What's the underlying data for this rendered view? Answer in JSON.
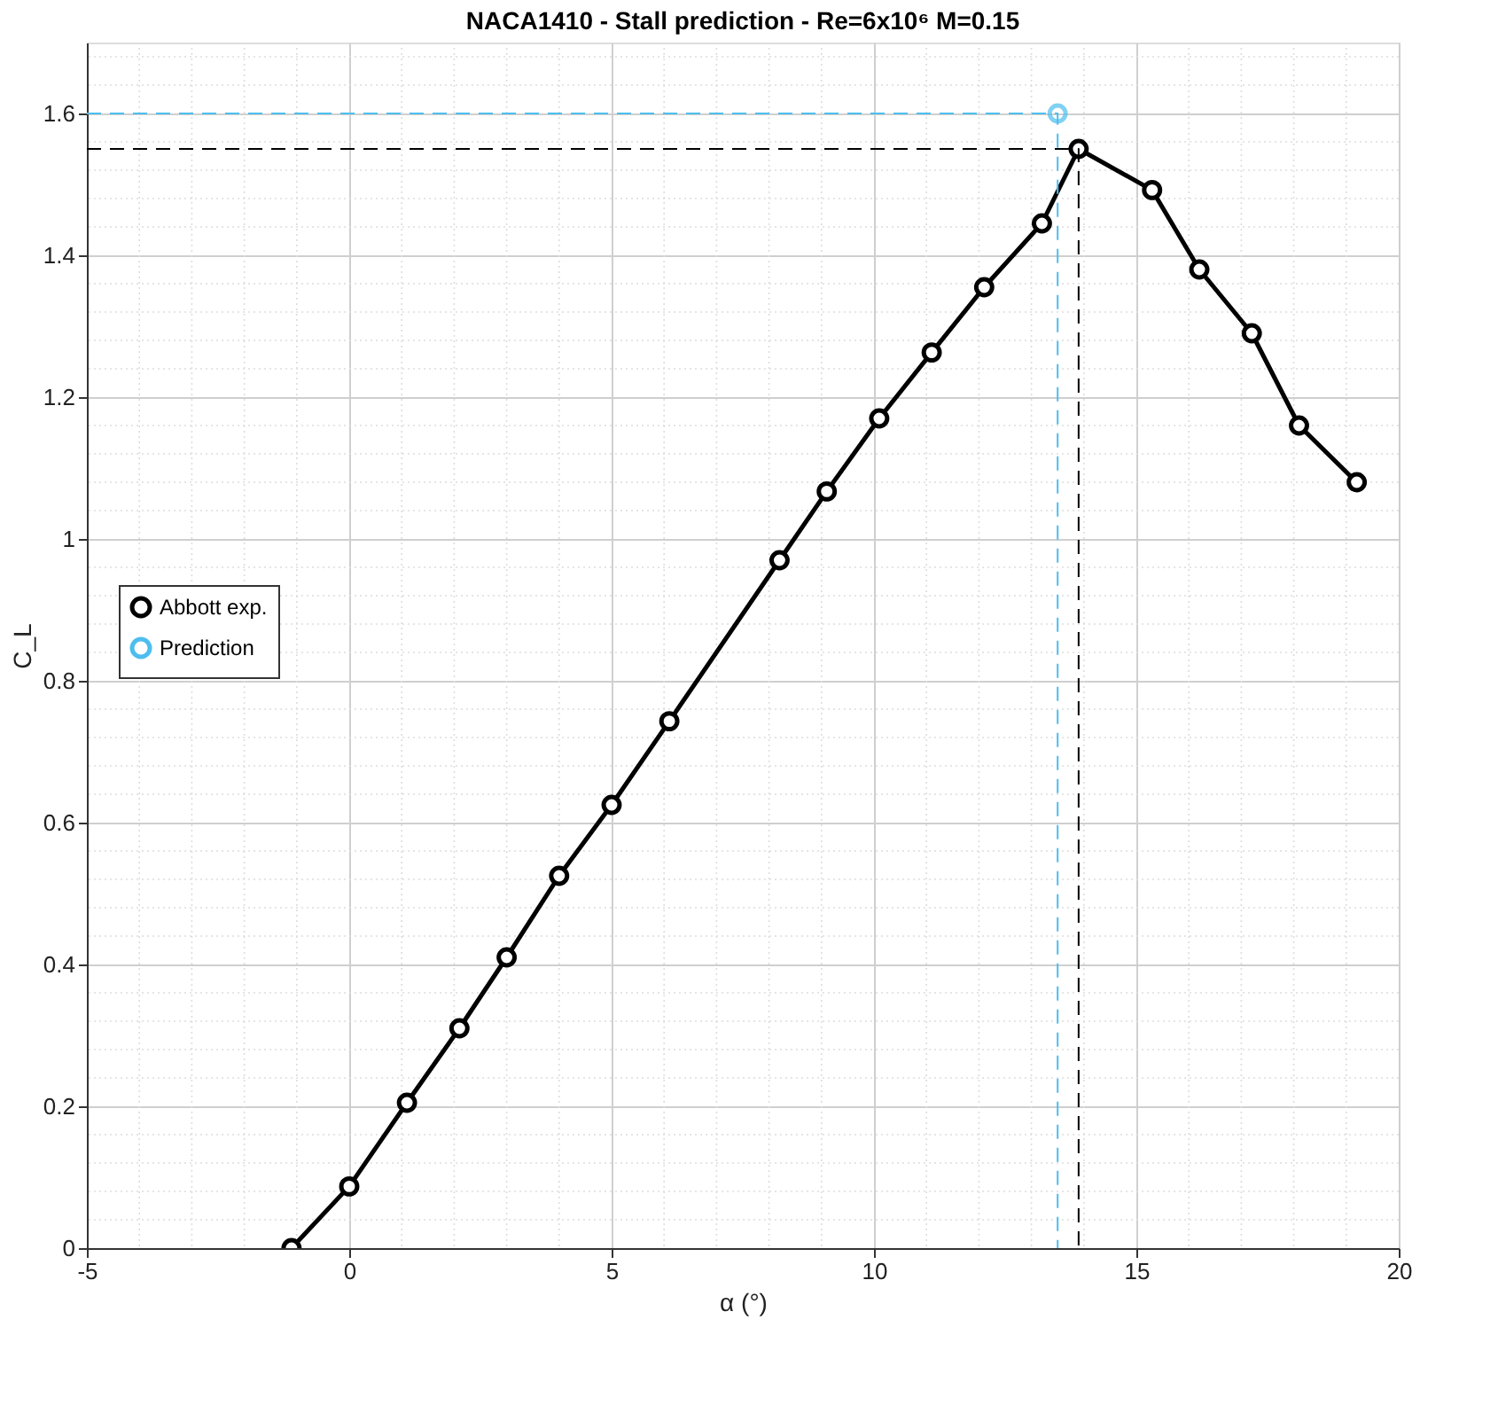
{
  "chart_data": {
    "type": "line",
    "title": "NACA1410 - Stall prediction - Re=6x10⁶ M=0.15",
    "xlabel": "α (°)",
    "ylabel": "C_L",
    "series": [
      {
        "name": "Abbott exp.",
        "color": "#000000",
        "marker": "circle",
        "line_style": "solid",
        "x": [
          -1.1,
          0,
          1.1,
          2.1,
          3.0,
          4.0,
          5.0,
          6.1,
          8.2,
          9.1,
          10.1,
          11.1,
          12.1,
          13.2,
          13.9,
          15.3,
          16.2,
          17.2,
          18.1,
          19.2
        ],
        "values": [
          0,
          0.087,
          0.205,
          0.31,
          0.41,
          0.525,
          0.625,
          0.743,
          0.97,
          1.067,
          1.17,
          1.263,
          1.355,
          1.445,
          1.55,
          1.492,
          1.38,
          1.29,
          1.16,
          1.08
        ]
      },
      {
        "name": "Prediction",
        "color": "#4dbeee",
        "type": "scatter",
        "marker": "circle",
        "x": [
          13.5
        ],
        "values": [
          1.6
        ]
      },
      {
        "color": "#000000",
        "marker": "none",
        "line_style": "dashed",
        "x": [
          -5,
          13.9,
          13.9
        ],
        "values": [
          1.55,
          1.55,
          0
        ]
      },
      {
        "color": "#4dbeee",
        "marker": "none",
        "line_style": "dashed",
        "x": [
          -5,
          13.5,
          13.5
        ],
        "values": [
          1.6,
          1.6,
          0
        ]
      }
    ],
    "xlim": [
      -5,
      20
    ],
    "xticks": [
      -5,
      0,
      5,
      10,
      15,
      20
    ],
    "ylim": [
      0,
      1.7
    ],
    "yticks": [
      0,
      0.2,
      0.4,
      0.6,
      0.8,
      1,
      1.2,
      1.4,
      1.6
    ],
    "grid": true,
    "legend": "left"
  }
}
